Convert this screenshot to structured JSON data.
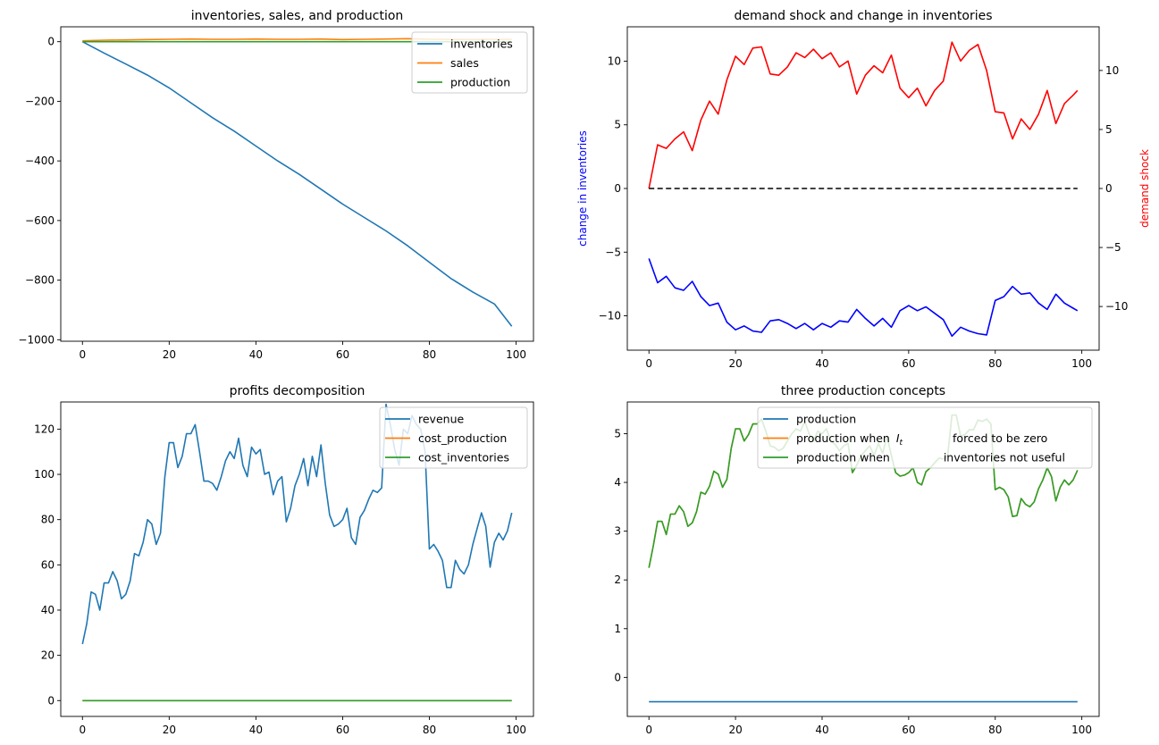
{
  "chart_data": [
    {
      "type": "line",
      "title": "inventories, sales, and production",
      "xlabel": "",
      "ylabel": "",
      "xlim": [
        -5,
        104
      ],
      "ylim": [
        -1005,
        50
      ],
      "xticks": [
        0,
        20,
        40,
        60,
        80,
        100
      ],
      "yticks": [
        0,
        -200,
        -400,
        -600,
        -800,
        -1000
      ],
      "legend": "upper right",
      "series": [
        {
          "name": "inventories",
          "color": "#1f77b4",
          "x": [
            0,
            5,
            10,
            15,
            20,
            25,
            30,
            35,
            40,
            45,
            50,
            55,
            60,
            65,
            70,
            75,
            80,
            85,
            90,
            95,
            99
          ],
          "y": [
            0,
            -38,
            -75,
            -112,
            -155,
            -205,
            -255,
            -300,
            -350,
            -400,
            -445,
            -495,
            -545,
            -590,
            -635,
            -685,
            -740,
            -795,
            -840,
            -880,
            -955
          ]
        },
        {
          "name": "sales",
          "color": "#ff7f0e",
          "x": [
            0,
            5,
            10,
            15,
            20,
            25,
            30,
            35,
            40,
            45,
            50,
            55,
            60,
            65,
            70,
            75,
            80,
            85,
            90,
            95,
            99
          ],
          "y": [
            3,
            5,
            6,
            7,
            8,
            9,
            8,
            8,
            9,
            8,
            8,
            9,
            7,
            8,
            9,
            10,
            8,
            8,
            7,
            8,
            8
          ]
        },
        {
          "name": "production",
          "color": "#2ca02c",
          "x": [
            0,
            99
          ],
          "y": [
            0,
            0
          ]
        }
      ]
    },
    {
      "type": "line",
      "title": "demand shock and change in inventories",
      "xlabel": "",
      "ylabel": "change in inventories",
      "y2label": "demand shock",
      "xlim": [
        -5,
        104
      ],
      "ylim": [
        -12.7,
        12.7
      ],
      "y2lim": [
        -13.7,
        13.7
      ],
      "xticks": [
        0,
        20,
        40,
        60,
        80,
        100
      ],
      "yticks": [
        10,
        5,
        0,
        -5,
        -10
      ],
      "y2ticks": [
        10,
        5,
        0,
        -5,
        -10
      ],
      "ylabel_color": "#0000ff",
      "y2label_color": "#ff0000",
      "series": [
        {
          "color": "#0000ff",
          "axis": "left",
          "x": [
            0,
            2,
            4,
            6,
            8,
            10,
            12,
            14,
            16,
            18,
            20,
            22,
            24,
            26,
            28,
            30,
            32,
            34,
            36,
            38,
            40,
            42,
            44,
            46,
            48,
            50,
            52,
            54,
            56,
            58,
            60,
            62,
            64,
            66,
            68,
            70,
            72,
            74,
            76,
            78,
            80,
            82,
            84,
            86,
            88,
            90,
            92,
            94,
            96,
            98,
            99
          ],
          "y": [
            -5.5,
            -7.4,
            -6.9,
            -7.8,
            -8.0,
            -7.3,
            -8.5,
            -9.2,
            -9.0,
            -10.5,
            -11.1,
            -10.8,
            -11.2,
            -11.3,
            -10.4,
            -10.3,
            -10.6,
            -11.0,
            -10.6,
            -11.1,
            -10.6,
            -10.9,
            -10.4,
            -10.5,
            -9.5,
            -10.2,
            -10.8,
            -10.2,
            -10.9,
            -9.6,
            -9.2,
            -9.6,
            -9.3,
            -9.8,
            -10.3,
            -11.6,
            -10.9,
            -11.2,
            -11.4,
            -11.5,
            -8.8,
            -8.5,
            -7.7,
            -8.3,
            -8.2,
            -9.0,
            -9.5,
            -8.3,
            -9.0,
            -9.4,
            -9.6
          ]
        },
        {
          "color": "#ff0000",
          "axis": "right",
          "x": [
            0,
            2,
            4,
            6,
            8,
            10,
            12,
            14,
            16,
            18,
            20,
            22,
            24,
            26,
            28,
            30,
            32,
            34,
            36,
            38,
            40,
            42,
            44,
            46,
            48,
            50,
            52,
            54,
            56,
            58,
            60,
            62,
            64,
            66,
            68,
            70,
            72,
            74,
            76,
            78,
            80,
            82,
            84,
            86,
            88,
            90,
            92,
            94,
            96,
            98,
            99
          ],
          "y": [
            0,
            3.7,
            3.4,
            4.2,
            4.8,
            3.2,
            5.8,
            7.4,
            6.3,
            9.2,
            11.2,
            10.5,
            11.9,
            12.0,
            9.7,
            9.6,
            10.3,
            11.5,
            11.1,
            11.8,
            11.0,
            11.5,
            10.3,
            10.8,
            8.0,
            9.6,
            10.4,
            9.8,
            11.3,
            8.5,
            7.7,
            8.5,
            7.0,
            8.3,
            9.1,
            12.4,
            10.8,
            11.7,
            12.2,
            10.0,
            6.5,
            6.4,
            4.2,
            5.9,
            5.0,
            6.3,
            8.3,
            5.5,
            7.2,
            7.9,
            8.3
          ]
        },
        {
          "color": "#000000",
          "axis": "right",
          "style": "dashed",
          "x": [
            0,
            99
          ],
          "y": [
            0,
            0
          ]
        }
      ]
    },
    {
      "type": "line",
      "title": "profits decomposition",
      "xlabel": "",
      "ylabel": "",
      "xlim": [
        -5,
        104
      ],
      "ylim": [
        -7,
        132
      ],
      "xticks": [
        0,
        20,
        40,
        60,
        80,
        100
      ],
      "yticks": [
        0,
        20,
        40,
        60,
        80,
        100,
        120
      ],
      "legend": "upper right",
      "series": [
        {
          "name": "revenue",
          "color": "#1f77b4",
          "x": [
            0,
            1,
            2,
            3,
            4,
            5,
            6,
            7,
            8,
            9,
            10,
            11,
            12,
            13,
            14,
            15,
            16,
            17,
            18,
            19,
            20,
            21,
            22,
            23,
            24,
            25,
            26,
            27,
            28,
            29,
            30,
            31,
            32,
            33,
            34,
            35,
            36,
            37,
            38,
            39,
            40,
            41,
            42,
            43,
            44,
            45,
            46,
            47,
            48,
            49,
            50,
            51,
            52,
            53,
            54,
            55,
            56,
            57,
            58,
            59,
            60,
            61,
            62,
            63,
            64,
            65,
            66,
            67,
            68,
            69,
            70,
            71,
            72,
            73,
            74,
            75,
            76,
            77,
            78,
            79,
            80,
            81,
            82,
            83,
            84,
            85,
            86,
            87,
            88,
            89,
            90,
            91,
            92,
            93,
            94,
            95,
            96,
            97,
            98,
            99
          ],
          "y": [
            25,
            34,
            48,
            47,
            40,
            52,
            52,
            57,
            53,
            45,
            47,
            53,
            65,
            64,
            70,
            80,
            78,
            69,
            74,
            99,
            114,
            114,
            103,
            108,
            118,
            118,
            122,
            110,
            97,
            97,
            96,
            93,
            99,
            106,
            110,
            107,
            116,
            104,
            99,
            112,
            109,
            111,
            100,
            101,
            91,
            97,
            99,
            79,
            85,
            95,
            100,
            107,
            95,
            108,
            99,
            113,
            96,
            82,
            77,
            78,
            80,
            85,
            72,
            69,
            81,
            84,
            89,
            93,
            92,
            94,
            131,
            122,
            111,
            104,
            120,
            118,
            126,
            122,
            120,
            110,
            67,
            69,
            66,
            62,
            50,
            50,
            62,
            58,
            56,
            60,
            69,
            76,
            83,
            77,
            59,
            70,
            74,
            71,
            75,
            83
          ]
        },
        {
          "name": "cost_production",
          "color": "#ff7f0e",
          "x": [
            0,
            99
          ],
          "y": [
            0,
            0
          ]
        },
        {
          "name": "cost_inventories",
          "color": "#2ca02c",
          "x": [
            0,
            99
          ],
          "y": [
            0,
            0
          ]
        }
      ]
    },
    {
      "type": "line",
      "title": "three production concepts",
      "xlabel": "",
      "ylabel": "",
      "xlim": [
        -5,
        104
      ],
      "ylim": [
        -0.8,
        5.65
      ],
      "xticks": [
        0,
        20,
        40,
        60,
        80,
        100
      ],
      "yticks": [
        0,
        1,
        2,
        3,
        4,
        5
      ],
      "legend": "upper right",
      "series": [
        {
          "name": "production",
          "color": "#1f77b4",
          "x": [
            0,
            99
          ],
          "y": [
            -0.5,
            -0.5
          ]
        },
        {
          "name_parts": [
            "production when ",
            "I",
            "t",
            " forced to be zero"
          ],
          "color": "#ff7f0e",
          "x": [
            0,
            1,
            2,
            3,
            4,
            5,
            6,
            7,
            8,
            9,
            10,
            11,
            12,
            13,
            14,
            15,
            16,
            17,
            18,
            19,
            20,
            21,
            22,
            23,
            24,
            25,
            26,
            27,
            28,
            29,
            30,
            31,
            32,
            33,
            34,
            35,
            36,
            37,
            38,
            39,
            40,
            41,
            42,
            43,
            44,
            45,
            46,
            47,
            48,
            49,
            50,
            51,
            52,
            53,
            54,
            55,
            56,
            57,
            58,
            59,
            60,
            61,
            62,
            63,
            64,
            65,
            66,
            67,
            68,
            69,
            70,
            71,
            72,
            73,
            74,
            75,
            76,
            77,
            78,
            79,
            80,
            81,
            82,
            83,
            84,
            85,
            86,
            87,
            88,
            89,
            90,
            91,
            92,
            93,
            94,
            95,
            96,
            97,
            98,
            99
          ],
          "y": [
            2.25,
            2.7,
            3.2,
            3.2,
            2.93,
            3.35,
            3.35,
            3.52,
            3.4,
            3.1,
            3.17,
            3.4,
            3.8,
            3.76,
            3.92,
            4.23,
            4.17,
            3.9,
            4.06,
            4.7,
            5.1,
            5.1,
            4.85,
            4.98,
            5.2,
            5.2,
            5.3,
            5.05,
            4.75,
            4.72,
            4.65,
            4.7,
            4.85,
            5.0,
            5.1,
            5.05,
            5.25,
            5.0,
            4.85,
            5.05,
            5.0,
            5.1,
            4.85,
            4.78,
            4.65,
            4.75,
            4.8,
            4.2,
            4.35,
            4.55,
            4.65,
            4.75,
            4.55,
            4.8,
            4.6,
            4.95,
            4.55,
            4.2,
            4.13,
            4.15,
            4.2,
            4.3,
            4.0,
            3.95,
            4.22,
            4.3,
            4.4,
            4.5,
            4.48,
            4.55,
            5.38,
            5.38,
            4.95,
            4.98,
            5.08,
            5.08,
            5.28,
            5.25,
            5.3,
            5.2,
            3.85,
            3.9,
            3.85,
            3.7,
            3.3,
            3.32,
            3.67,
            3.55,
            3.5,
            3.6,
            3.87,
            4.05,
            4.3,
            4.12,
            3.62,
            3.9,
            4.05,
            3.95,
            4.05,
            4.25
          ]
        },
        {
          "name_parts": [
            "production when ",
            "inventories not useful"
          ],
          "color": "#2ca02c",
          "x": [
            0,
            1,
            2,
            3,
            4,
            5,
            6,
            7,
            8,
            9,
            10,
            11,
            12,
            13,
            14,
            15,
            16,
            17,
            18,
            19,
            20,
            21,
            22,
            23,
            24,
            25,
            26,
            27,
            28,
            29,
            30,
            31,
            32,
            33,
            34,
            35,
            36,
            37,
            38,
            39,
            40,
            41,
            42,
            43,
            44,
            45,
            46,
            47,
            48,
            49,
            50,
            51,
            52,
            53,
            54,
            55,
            56,
            57,
            58,
            59,
            60,
            61,
            62,
            63,
            64,
            65,
            66,
            67,
            68,
            69,
            70,
            71,
            72,
            73,
            74,
            75,
            76,
            77,
            78,
            79,
            80,
            81,
            82,
            83,
            84,
            85,
            86,
            87,
            88,
            89,
            90,
            91,
            92,
            93,
            94,
            95,
            96,
            97,
            98,
            99
          ],
          "y": [
            2.25,
            2.7,
            3.2,
            3.2,
            2.93,
            3.35,
            3.35,
            3.52,
            3.4,
            3.1,
            3.17,
            3.4,
            3.8,
            3.76,
            3.92,
            4.23,
            4.17,
            3.9,
            4.06,
            4.7,
            5.1,
            5.1,
            4.85,
            4.98,
            5.2,
            5.2,
            5.3,
            5.05,
            4.75,
            4.72,
            4.65,
            4.7,
            4.85,
            5.0,
            5.1,
            5.05,
            5.25,
            5.0,
            4.85,
            5.05,
            5.0,
            5.1,
            4.85,
            4.78,
            4.65,
            4.75,
            4.8,
            4.2,
            4.35,
            4.55,
            4.65,
            4.75,
            4.55,
            4.8,
            4.6,
            4.95,
            4.55,
            4.2,
            4.13,
            4.15,
            4.2,
            4.3,
            4.0,
            3.95,
            4.22,
            4.3,
            4.4,
            4.5,
            4.48,
            4.55,
            5.38,
            5.38,
            4.95,
            4.98,
            5.08,
            5.08,
            5.28,
            5.25,
            5.3,
            5.2,
            3.85,
            3.9,
            3.85,
            3.7,
            3.3,
            3.32,
            3.67,
            3.55,
            3.5,
            3.6,
            3.87,
            4.05,
            4.3,
            4.12,
            3.62,
            3.9,
            4.05,
            3.95,
            4.05,
            4.25
          ]
        }
      ]
    }
  ]
}
